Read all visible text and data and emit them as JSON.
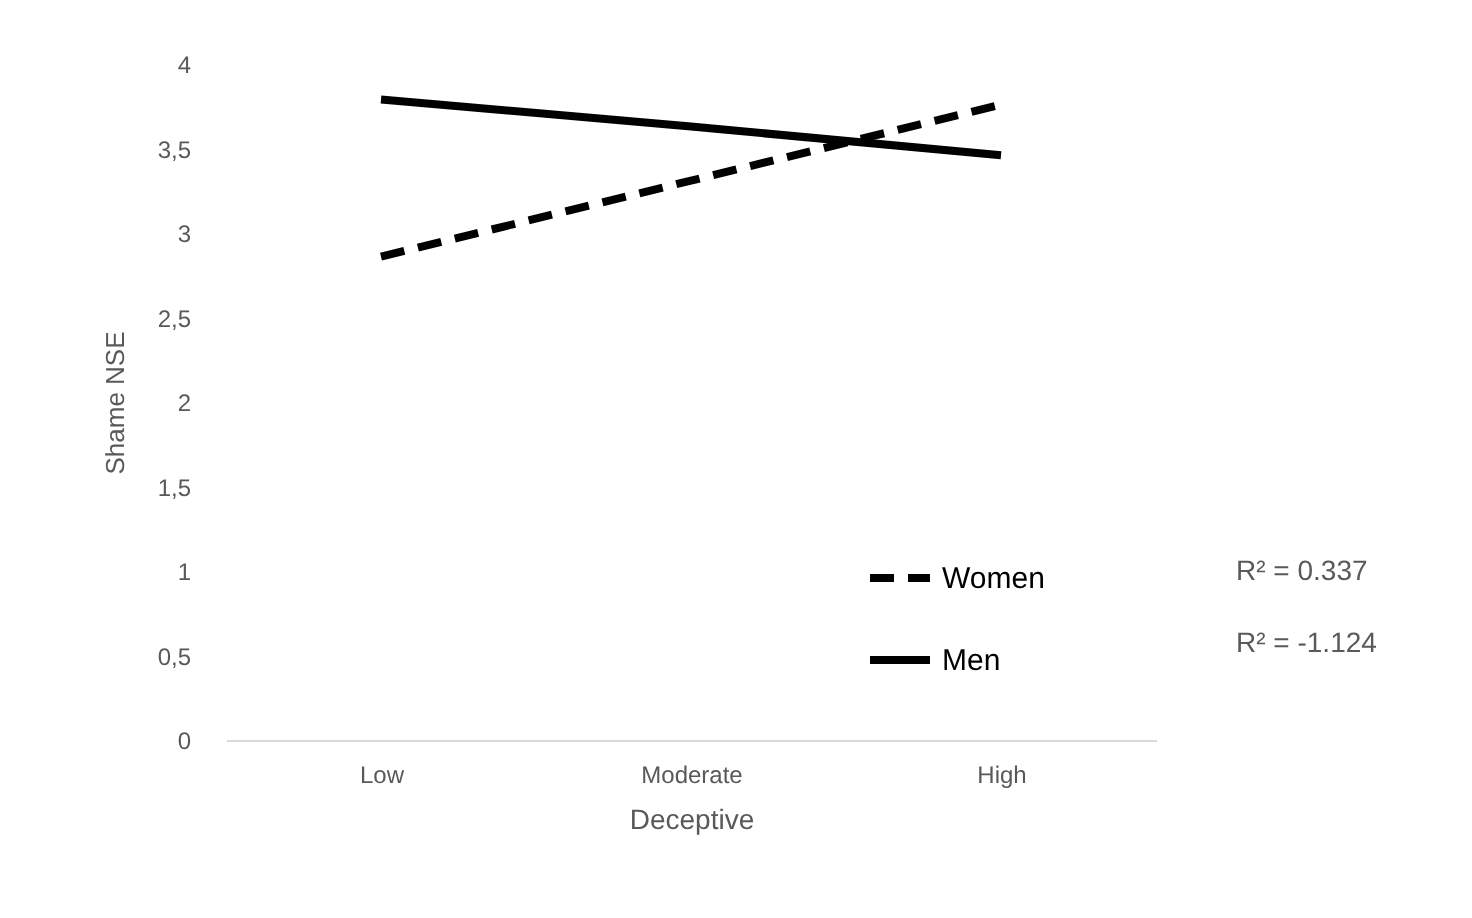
{
  "chart_data": {
    "type": "line",
    "xlabel": "Deceptive",
    "ylabel": "Shame NSE",
    "categories": [
      "Low",
      "Moderate",
      "High"
    ],
    "series": [
      {
        "name": "Women",
        "color": "#000000",
        "line_style": "dashed",
        "values": [
          2.86,
          3.31,
          3.76
        ]
      },
      {
        "name": "Men",
        "color": "#000000",
        "line_style": "solid",
        "values": [
          3.79,
          3.63,
          3.46
        ]
      }
    ],
    "ylim": [
      0,
      4
    ],
    "yticks": [
      0,
      {
        "value": 0.5,
        "label": "0,5"
      },
      1,
      {
        "value": 1.5,
        "label": "1,5"
      },
      2,
      {
        "value": 2.5,
        "label": "2,5"
      },
      3,
      {
        "value": 3.5,
        "label": "3,5"
      },
      4
    ],
    "grid": false,
    "legend": "bottom right",
    "marker": "none",
    "annotations": [
      "R² = 0.337",
      "R² = -1.124"
    ]
  }
}
